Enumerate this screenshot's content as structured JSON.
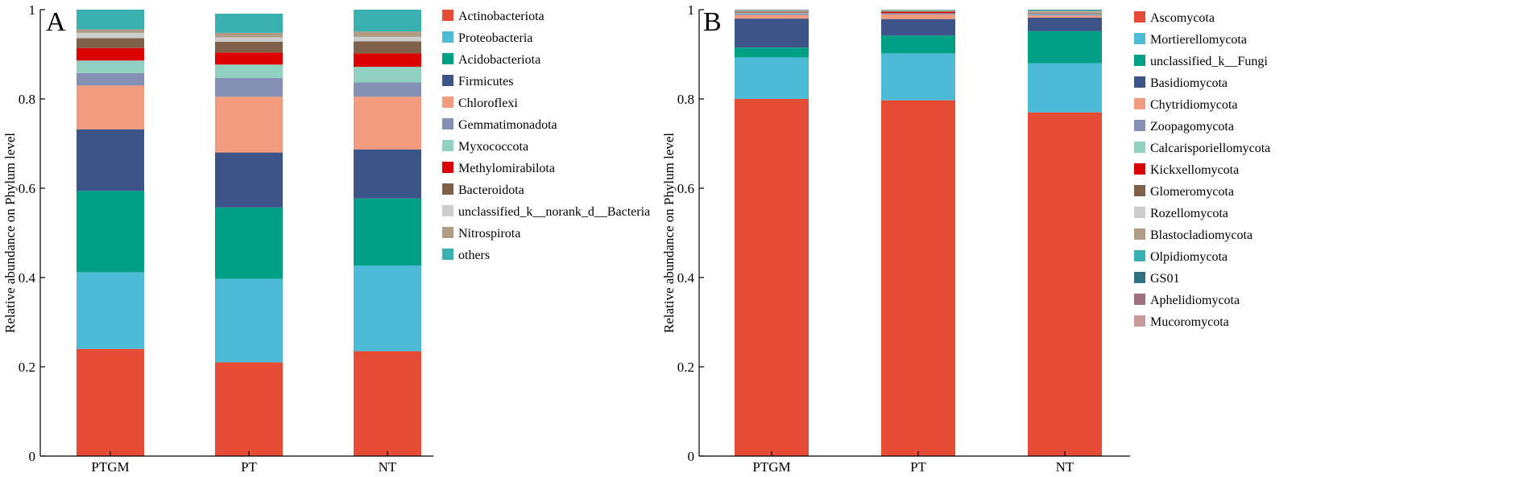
{
  "chart_data": [
    {
      "type": "bar",
      "stacked": true,
      "panel_label": "A",
      "ylabel": "Relative abundance on Phylum level",
      "xlabel": "",
      "ylim": [
        0,
        1
      ],
      "yticks": [
        "0",
        "0.2",
        "0.4",
        "0.6",
        "0.8",
        "1"
      ],
      "categories": [
        "PTGM",
        "PT",
        "NT"
      ],
      "legend_position": "right",
      "series": [
        {
          "name": "Actinobacteriota",
          "color": "#E64B35",
          "values": [
            0.24,
            0.21,
            0.235
          ]
        },
        {
          "name": "Proteobacteria",
          "color": "#4DBBD5",
          "values": [
            0.172,
            0.187,
            0.192
          ]
        },
        {
          "name": "Acidobacteriota",
          "color": "#00A087",
          "values": [
            0.182,
            0.16,
            0.15
          ]
        },
        {
          "name": "Firmicutes",
          "color": "#3C5488",
          "values": [
            0.138,
            0.123,
            0.11
          ]
        },
        {
          "name": "Chloroflexi",
          "color": "#F39B7F",
          "values": [
            0.098,
            0.125,
            0.118
          ]
        },
        {
          "name": "Gemmatimonadota",
          "color": "#8491B4",
          "values": [
            0.028,
            0.042,
            0.032
          ]
        },
        {
          "name": "Myxococcota",
          "color": "#91D1C2",
          "values": [
            0.028,
            0.03,
            0.035
          ]
        },
        {
          "name": "Methylomirabilota",
          "color": "#DC0000",
          "values": [
            0.028,
            0.027,
            0.03
          ]
        },
        {
          "name": "Bacteroidota",
          "color": "#7E6148",
          "values": [
            0.022,
            0.024,
            0.027
          ]
        },
        {
          "name": "unclassified_k__norank_d__Bacteria",
          "color": "#CCCCCC",
          "values": [
            0.012,
            0.01,
            0.01
          ]
        },
        {
          "name": "Nitrospirota",
          "color": "#B09C85",
          "values": [
            0.008,
            0.01,
            0.012
          ]
        },
        {
          "name": "others",
          "color": "#3AB0B0",
          "values": [
            0.044,
            0.043,
            0.049
          ]
        }
      ]
    },
    {
      "type": "bar",
      "stacked": true,
      "panel_label": "B",
      "ylabel": "Relative abundance on Phylum level",
      "xlabel": "",
      "ylim": [
        0,
        1
      ],
      "yticks": [
        "0",
        "0.2",
        "0.4",
        "0.6",
        "0.8",
        "1"
      ],
      "categories": [
        "PTGM",
        "PT",
        "NT"
      ],
      "legend_position": "right",
      "series": [
        {
          "name": "Ascomycota",
          "color": "#E64B35",
          "values": [
            0.8,
            0.797,
            0.77
          ]
        },
        {
          "name": "Mortierellomycota",
          "color": "#4DBBD5",
          "values": [
            0.093,
            0.105,
            0.11
          ]
        },
        {
          "name": "unclassified_k__Fungi",
          "color": "#00A087",
          "values": [
            0.022,
            0.04,
            0.072
          ]
        },
        {
          "name": "Basidiomycota",
          "color": "#3C5488",
          "values": [
            0.065,
            0.037,
            0.03
          ]
        },
        {
          "name": "Chytridiomycota",
          "color": "#F39B7F",
          "values": [
            0.008,
            0.01,
            0.005
          ]
        },
        {
          "name": "Zoopagomycota",
          "color": "#8491B4",
          "values": [
            0.003,
            0.002,
            0.003
          ]
        },
        {
          "name": "Calcarisporiellomycota",
          "color": "#91D1C2",
          "values": [
            0.002,
            0.001,
            0.002
          ]
        },
        {
          "name": "Kickxellomycota",
          "color": "#DC0000",
          "values": [
            0.001,
            0.003,
            0.001
          ]
        },
        {
          "name": "Glomeromycota",
          "color": "#7E6148",
          "values": [
            0.002,
            0.002,
            0.001
          ]
        },
        {
          "name": "Rozellomycota",
          "color": "#CCCCCC",
          "values": [
            0.001,
            0.001,
            0.001
          ]
        },
        {
          "name": "Blastocladiomycota",
          "color": "#B09C85",
          "values": [
            0.001,
            0.001,
            0.002
          ]
        },
        {
          "name": "Olpidiomycota",
          "color": "#3AB0B0",
          "values": [
            0.001,
            0.001,
            0.002
          ]
        },
        {
          "name": "GS01",
          "color": "#2E7080",
          "values": [
            0.0,
            0.0,
            0.001
          ]
        },
        {
          "name": "Aphelidiomycota",
          "color": "#A0707E",
          "values": [
            0.001,
            0.0,
            0.0
          ]
        },
        {
          "name": "Mucoromycota",
          "color": "#C89A9A",
          "values": [
            0.0,
            0.0,
            0.0
          ]
        }
      ]
    }
  ]
}
